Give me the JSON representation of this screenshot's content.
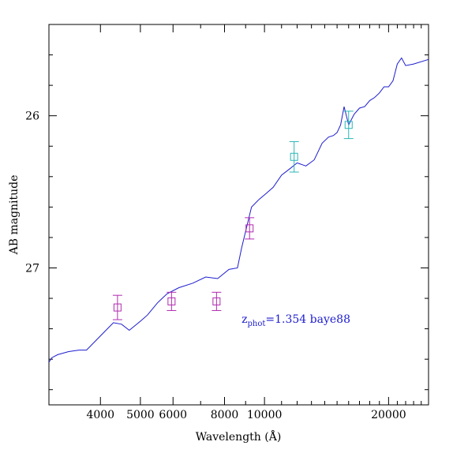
{
  "chart_data": {
    "type": "scatter",
    "xlabel": "Wavelength (Å)",
    "ylabel": "AB magnitude",
    "x_scale": "log",
    "y_inverted": true,
    "xlim": [
      3000,
      25000
    ],
    "ylim": [
      27.9,
      25.4
    ],
    "x_ticks": [
      {
        "value": 4000,
        "label": "4000"
      },
      {
        "value": 5000,
        "label": "5000"
      },
      {
        "value": 6000,
        "label": "6000"
      },
      {
        "value": 8000,
        "label": "8000"
      },
      {
        "value": 10000,
        "label": "10000"
      },
      {
        "value": 20000,
        "label": "20000"
      }
    ],
    "y_ticks": [
      {
        "value": 26,
        "label": "26"
      },
      {
        "value": 27,
        "label": "27"
      }
    ],
    "annotation": {
      "main": "z",
      "sub": "phot",
      "rest": "=1.354  baye88",
      "x": 8800,
      "y": 27.36,
      "color": "#1c1ccf"
    },
    "series": [
      {
        "type": "line",
        "color": "#1c1ccf",
        "x": [
          3000,
          3050,
          3150,
          3350,
          3550,
          3700,
          4300,
          4500,
          4700,
          5000,
          5200,
          5500,
          5800,
          6200,
          6700,
          7200,
          7700,
          8200,
          8600,
          8800,
          9000,
          9300,
          9700,
          10100,
          10500,
          11000,
          11500,
          12000,
          12600,
          13200,
          13800,
          14300,
          14700,
          15000,
          15300,
          15600,
          16000,
          16500,
          17000,
          17500,
          18000,
          18500,
          19000,
          19500,
          20000,
          20500,
          21000,
          21500,
          22000,
          23000,
          25000
        ],
        "y": [
          27.62,
          27.59,
          27.57,
          27.55,
          27.54,
          27.54,
          27.36,
          27.37,
          27.41,
          27.35,
          27.31,
          27.23,
          27.17,
          27.13,
          27.1,
          27.06,
          27.07,
          27.01,
          27.0,
          26.87,
          26.76,
          26.6,
          26.55,
          26.51,
          26.47,
          26.39,
          26.35,
          26.31,
          26.33,
          26.29,
          26.18,
          26.14,
          26.13,
          26.11,
          26.06,
          25.94,
          26.06,
          25.99,
          25.95,
          25.94,
          25.9,
          25.88,
          25.85,
          25.81,
          25.81,
          25.77,
          25.66,
          25.62,
          25.67,
          25.66,
          25.63
        ]
      },
      {
        "type": "points",
        "color": "#b02ab0",
        "points": [
          {
            "x": 4400,
            "y": 27.26,
            "err": 0.08
          },
          {
            "x": 5950,
            "y": 27.22,
            "err": 0.06
          },
          {
            "x": 7650,
            "y": 27.22,
            "err": 0.06
          },
          {
            "x": 9200,
            "y": 26.74,
            "err": 0.07
          }
        ]
      },
      {
        "type": "points",
        "color": "#2ab5b5",
        "points": [
          {
            "x": 11800,
            "y": 26.27,
            "err": 0.1
          },
          {
            "x": 16000,
            "y": 26.06,
            "err": 0.09
          }
        ]
      }
    ]
  }
}
